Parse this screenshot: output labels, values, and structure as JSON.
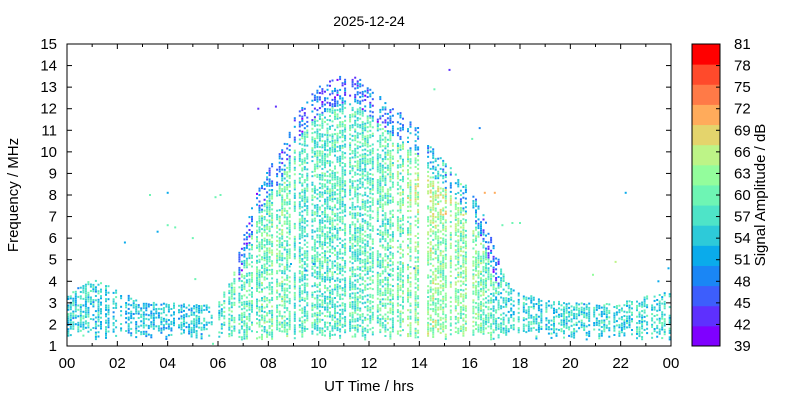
{
  "chart_data": {
    "type": "heatmap",
    "title": "2025-12-24",
    "xlabel": "UT Time / hrs",
    "ylabel": "Frequency / MHz",
    "colorbar_label": "Signal Amplitude / dB",
    "xlim": [
      0,
      24
    ],
    "ylim": [
      1,
      15
    ],
    "x_ticks": [
      "00",
      "02",
      "04",
      "06",
      "08",
      "10",
      "12",
      "14",
      "16",
      "18",
      "20",
      "22",
      "00"
    ],
    "y_ticks": [
      "1",
      "2",
      "3",
      "4",
      "5",
      "6",
      "7",
      "8",
      "9",
      "10",
      "11",
      "12",
      "13",
      "14",
      "15"
    ],
    "colorbar_ticks": [
      "39",
      "42",
      "45",
      "48",
      "51",
      "54",
      "57",
      "60",
      "63",
      "66",
      "69",
      "72",
      "75",
      "78",
      "81"
    ],
    "colorbar_range": [
      39,
      81
    ],
    "colorbar_colors": [
      "#7f00ff",
      "#5e30fe",
      "#3d5efc",
      "#1a86f5",
      "#0aabeb",
      "#2dcad9",
      "#4ee4c8",
      "#6ef5b4",
      "#93fd9c",
      "#bdf487",
      "#e4d46c",
      "#ffab5b",
      "#ff7a47",
      "#ff4a2b",
      "#ff0000"
    ],
    "grid": false,
    "envelope": [
      {
        "x": 0.0,
        "top": 3.4,
        "level": 55
      },
      {
        "x": 1.0,
        "top": 4.1,
        "level": 55
      },
      {
        "x": 2.0,
        "top": 3.6,
        "level": 54
      },
      {
        "x": 3.0,
        "top": 3.0,
        "level": 53
      },
      {
        "x": 4.0,
        "top": 3.0,
        "level": 53
      },
      {
        "x": 5.0,
        "top": 2.9,
        "level": 54
      },
      {
        "x": 6.0,
        "top": 3.0,
        "level": 57
      },
      {
        "x": 6.6,
        "top": 4.2,
        "level": 58
      },
      {
        "x": 7.0,
        "top": 6.0,
        "level": 59
      },
      {
        "x": 7.5,
        "top": 8.0,
        "level": 59
      },
      {
        "x": 8.0,
        "top": 9.2,
        "level": 60
      },
      {
        "x": 8.5,
        "top": 10.0,
        "level": 60
      },
      {
        "x": 9.0,
        "top": 11.5,
        "level": 59
      },
      {
        "x": 9.5,
        "top": 12.4,
        "level": 58
      },
      {
        "x": 10.0,
        "top": 13.0,
        "level": 58
      },
      {
        "x": 10.5,
        "top": 13.3,
        "level": 58
      },
      {
        "x": 11.0,
        "top": 13.6,
        "level": 58
      },
      {
        "x": 11.5,
        "top": 13.5,
        "level": 58
      },
      {
        "x": 12.0,
        "top": 13.0,
        "level": 59
      },
      {
        "x": 12.5,
        "top": 12.5,
        "level": 59
      },
      {
        "x": 13.0,
        "top": 12.0,
        "level": 60
      },
      {
        "x": 13.5,
        "top": 11.6,
        "level": 61
      },
      {
        "x": 14.0,
        "top": 11.1,
        "level": 62
      },
      {
        "x": 14.5,
        "top": 10.2,
        "level": 63
      },
      {
        "x": 15.0,
        "top": 9.6,
        "level": 62
      },
      {
        "x": 15.5,
        "top": 9.0,
        "level": 62
      },
      {
        "x": 16.0,
        "top": 8.3,
        "level": 62
      },
      {
        "x": 16.5,
        "top": 7.3,
        "level": 61
      },
      {
        "x": 17.0,
        "top": 5.5,
        "level": 58
      },
      {
        "x": 17.5,
        "top": 4.0,
        "level": 56
      },
      {
        "x": 18.0,
        "top": 3.5,
        "level": 55
      },
      {
        "x": 19.0,
        "top": 3.1,
        "level": 55
      },
      {
        "x": 20.0,
        "top": 3.0,
        "level": 55
      },
      {
        "x": 21.0,
        "top": 3.0,
        "level": 55
      },
      {
        "x": 22.0,
        "top": 3.0,
        "level": 56
      },
      {
        "x": 23.0,
        "top": 3.3,
        "level": 56
      },
      {
        "x": 24.0,
        "top": 3.5,
        "level": 56
      }
    ],
    "scattered_points": [
      {
        "x": 2.3,
        "y": 5.8,
        "v": 52
      },
      {
        "x": 3.3,
        "y": 8.0,
        "v": 60
      },
      {
        "x": 3.6,
        "y": 6.3,
        "v": 52
      },
      {
        "x": 4.0,
        "y": 8.1,
        "v": 52
      },
      {
        "x": 4.0,
        "y": 6.6,
        "v": 60
      },
      {
        "x": 4.3,
        "y": 6.5,
        "v": 60
      },
      {
        "x": 5.0,
        "y": 6.0,
        "v": 60
      },
      {
        "x": 5.1,
        "y": 4.1,
        "v": 60
      },
      {
        "x": 5.9,
        "y": 7.9,
        "v": 60
      },
      {
        "x": 6.1,
        "y": 8.0,
        "v": 60
      },
      {
        "x": 7.6,
        "y": 12.0,
        "v": 42
      },
      {
        "x": 8.3,
        "y": 12.1,
        "v": 42
      },
      {
        "x": 8.9,
        "y": 4.8,
        "v": 52
      },
      {
        "x": 9.5,
        "y": 4.5,
        "v": 48
      },
      {
        "x": 9.8,
        "y": 4.8,
        "v": 48
      },
      {
        "x": 12.8,
        "y": 4.3,
        "v": 48
      },
      {
        "x": 13.8,
        "y": 4.6,
        "v": 50
      },
      {
        "x": 14.6,
        "y": 12.9,
        "v": 60
      },
      {
        "x": 15.2,
        "y": 13.8,
        "v": 42
      },
      {
        "x": 16.1,
        "y": 10.6,
        "v": 60
      },
      {
        "x": 16.4,
        "y": 11.1,
        "v": 50
      },
      {
        "x": 16.6,
        "y": 8.1,
        "v": 72
      },
      {
        "x": 17.0,
        "y": 8.1,
        "v": 72
      },
      {
        "x": 17.3,
        "y": 6.6,
        "v": 60
      },
      {
        "x": 17.7,
        "y": 6.7,
        "v": 60
      },
      {
        "x": 18.0,
        "y": 6.7,
        "v": 60
      },
      {
        "x": 20.9,
        "y": 4.3,
        "v": 63
      },
      {
        "x": 21.8,
        "y": 4.9,
        "v": 66
      },
      {
        "x": 22.2,
        "y": 8.1,
        "v": 52
      },
      {
        "x": 23.5,
        "y": 4.0,
        "v": 52
      },
      {
        "x": 23.9,
        "y": 4.6,
        "v": 52
      },
      {
        "x": 5.8,
        "y": 1.1,
        "v": 60
      }
    ]
  }
}
